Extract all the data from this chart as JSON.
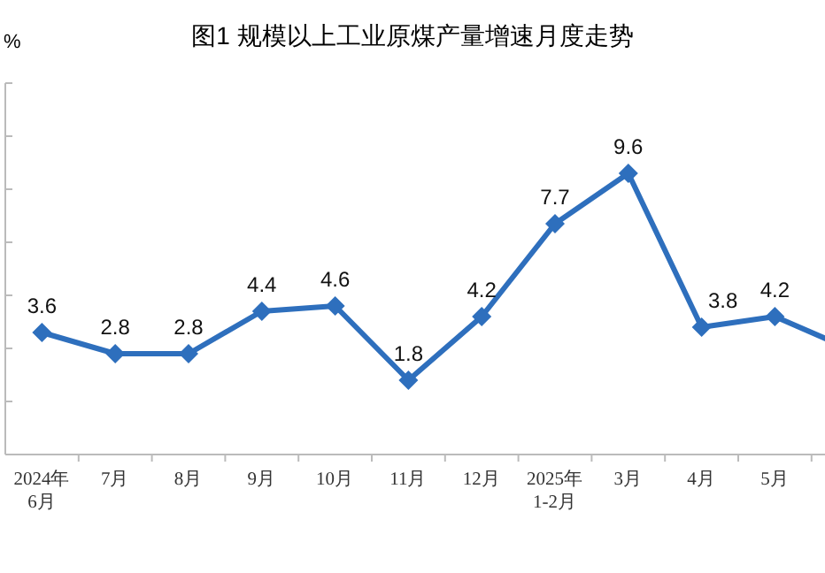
{
  "chart_data": {
    "type": "line",
    "title": "图1  规模以上工业原煤产量增速月度走势",
    "ylabel": "%",
    "categories": [
      "2024年\n6月",
      "7月",
      "8月",
      "9月",
      "10月",
      "11月",
      "12月",
      "2025年\n1-2月",
      "3月",
      "4月",
      "5月",
      null
    ],
    "series": [
      {
        "color": "#2e6fbd",
        "values": [
          3.6,
          2.8,
          2.8,
          4.4,
          4.6,
          1.8,
          4.2,
          7.7,
          9.6,
          3.8,
          4.2,
          3.0
        ],
        "value_labels": [
          "3.6",
          "2.8",
          "2.8",
          "4.4",
          "4.6",
          "1.8",
          "4.2",
          "7.7",
          "9.6",
          "3.8",
          "4.2",
          null
        ]
      }
    ],
    "ylim": [
      -1,
      13
    ],
    "yticks": [
      {
        "value": -1,
        "label": null
      },
      {
        "value": 1,
        "label": null
      },
      {
        "value": 3,
        "label": null
      },
      {
        "value": 5,
        "label": null
      },
      {
        "value": 7,
        "label": null
      },
      {
        "value": 9,
        "label": null
      },
      {
        "value": 11,
        "label": null
      },
      {
        "value": 13,
        "label": null
      }
    ],
    "marker": "diamond",
    "line_style": "solid",
    "grid": false
  }
}
